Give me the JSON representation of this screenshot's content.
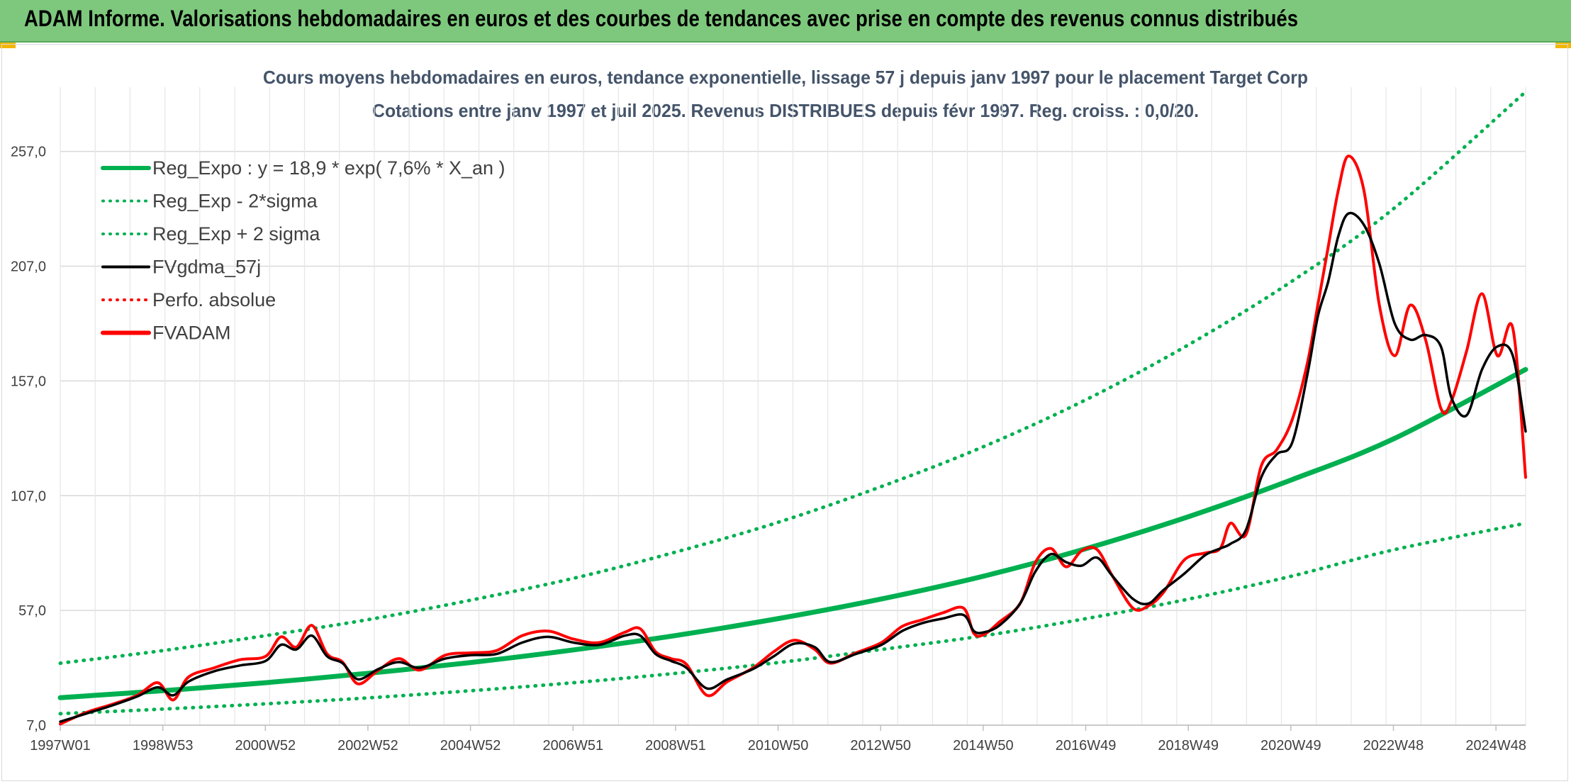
{
  "header": {
    "banner_title": "ADAM Informe. Valorisations hebdomadaires en euros et des courbes de tendances avec prise en compte des revenus connus distribués"
  },
  "colors": {
    "banner_bg": "#7dc87c",
    "reg_expo": "#00b050",
    "reg_sigma": "#00b050",
    "fvgdma": "#000000",
    "perfo": "#ff0000",
    "fvadam": "#ff0000",
    "grid": "#d9d9d9",
    "text": "#44546a"
  },
  "chart_data": {
    "type": "line",
    "title": "Cours moyens hebdomadaires en euros, tendance exponentielle, lissage 57 j depuis janv 1997 pour le placement Target Corp",
    "subtitle": "Cotations entre janv 1997 et juil 2025. Revenus DISTRIBUES depuis févr 1997. Reg. croiss. : 0,0/20.",
    "xlabel": "",
    "ylabel": "",
    "x_ticks": [
      "1997W01",
      "1998W53",
      "2000W52",
      "2002W52",
      "2004W52",
      "2006W51",
      "2008W51",
      "2010W50",
      "2012W50",
      "2014W50",
      "2016W49",
      "2018W49",
      "2020W49",
      "2022W48",
      "2024W48"
    ],
    "x_range": [
      1997.0,
      2025.55
    ],
    "y_ticks": [
      "7,0",
      "57,0",
      "107,0",
      "157,0",
      "207,0",
      "257,0"
    ],
    "ylim": [
      7,
      285
    ],
    "grid": true,
    "legend_position": "top-left",
    "legend": [
      {
        "label": "Reg_Expo : y = 18,9 * exp( 7,6% *  X_an )",
        "style": "solid-thick",
        "color": "#00b050"
      },
      {
        "label": "Reg_Exp - 2*sigma",
        "style": "dotted",
        "color": "#00b050"
      },
      {
        "label": "Reg_Exp + 2 sigma",
        "style": "dotted",
        "color": "#00b050"
      },
      {
        "label": "FVgdma_57j",
        "style": "solid",
        "color": "#000000"
      },
      {
        "label": "Perfo. absolue",
        "style": "dotted",
        "color": "#ff0000"
      },
      {
        "label": "FVADAM",
        "style": "solid-thick",
        "color": "#ff0000"
      }
    ],
    "series": [
      {
        "name": "Reg_Expo : y = 18,9 * exp( 7,6% *  X_an )",
        "style": "solid",
        "x": [
          1997.0,
          1999.0,
          2001.0,
          2003.0,
          2005.0,
          2007.0,
          2009.0,
          2011.0,
          2013.0,
          2015.0,
          2017.0,
          2019.0,
          2021.0,
          2023.0,
          2025.55
        ],
        "y": [
          19.0,
          22.0,
          25.5,
          29.6,
          34.3,
          39.8,
          46.1,
          53.5,
          62.0,
          72.0,
          84.0,
          98.0,
          114.0,
          132.0,
          162.0
        ]
      },
      {
        "name": "Reg_Exp + 2 sigma",
        "style": "dotted",
        "x": [
          1997.0,
          1999.0,
          2001.0,
          2003.0,
          2005.0,
          2007.0,
          2009.0,
          2011.0,
          2013.0,
          2015.0,
          2017.0,
          2019.0,
          2021.0,
          2023.0,
          2025.55
        ],
        "y": [
          34.0,
          39.5,
          46.0,
          53.0,
          61.5,
          71.0,
          82.5,
          95.5,
          111.0,
          128.5,
          149.0,
          173.0,
          200.5,
          232.5,
          283.0
        ]
      },
      {
        "name": "Reg_Exp - 2*sigma",
        "style": "dotted",
        "x": [
          1997.0,
          1999.0,
          2001.0,
          2003.0,
          2005.0,
          2007.0,
          2009.0,
          2011.0,
          2013.0,
          2015.0,
          2017.0,
          2019.0,
          2021.0,
          2023.0,
          2025.55
        ],
        "y": [
          12.0,
          14.0,
          16.3,
          18.9,
          22.0,
          25.5,
          29.6,
          34.3,
          40.0,
          46.0,
          53.5,
          62.0,
          72.0,
          83.5,
          95.0
        ]
      },
      {
        "name": "FVgdma_57j",
        "style": "solid",
        "x": [
          1997.0,
          1997.5,
          1998.0,
          1998.5,
          1998.9,
          1999.2,
          1999.5,
          2000.0,
          2000.5,
          2001.0,
          2001.3,
          2001.6,
          2001.9,
          2002.2,
          2002.5,
          2002.8,
          2003.2,
          2003.6,
          2004.0,
          2004.5,
          2005.0,
          2005.5,
          2006.0,
          2006.5,
          2007.0,
          2007.5,
          2008.0,
          2008.3,
          2008.6,
          2008.9,
          2009.2,
          2009.6,
          2010.0,
          2010.5,
          2010.9,
          2011.3,
          2011.7,
          2012.0,
          2012.5,
          2013.0,
          2013.4,
          2013.8,
          2014.2,
          2014.6,
          2014.8,
          2015.0,
          2015.3,
          2015.7,
          2016.0,
          2016.3,
          2016.6,
          2016.9,
          2017.2,
          2017.5,
          2017.9,
          2018.2,
          2018.5,
          2018.9,
          2019.3,
          2019.6,
          2019.8,
          2020.1,
          2020.4,
          2020.7,
          2021.0,
          2021.3,
          2021.5,
          2021.7,
          2021.9,
          2022.1,
          2022.4,
          2022.7,
          2023.0,
          2023.3,
          2023.6,
          2023.9,
          2024.1,
          2024.4,
          2024.7,
          2025.0,
          2025.3,
          2025.55
        ],
        "y": [
          8.5,
          12.0,
          15.5,
          19.5,
          23.5,
          20.0,
          26.0,
          30.5,
          33.0,
          35.0,
          42.0,
          40.0,
          46.0,
          37.0,
          34.0,
          27.0,
          31.5,
          34.5,
          32.0,
          36.0,
          37.5,
          38.0,
          43.0,
          45.5,
          43.0,
          42.0,
          46.0,
          46.0,
          38.0,
          35.0,
          32.0,
          23.0,
          27.0,
          31.5,
          37.0,
          42.5,
          41.0,
          34.5,
          38.0,
          42.0,
          48.0,
          51.5,
          53.5,
          55.0,
          48.0,
          47.5,
          50.5,
          60.0,
          74.0,
          81.5,
          78.0,
          76.5,
          80.0,
          72.0,
          62.0,
          60.0,
          66.0,
          73.0,
          81.0,
          84.0,
          86.0,
          92.0,
          115.0,
          125.0,
          130.0,
          160.0,
          185.0,
          200.0,
          220.0,
          230.0,
          225.0,
          208.0,
          182.0,
          175.0,
          177.0,
          172.0,
          150.0,
          142.0,
          162.0,
          172.0,
          168.0,
          135.0
        ]
      },
      {
        "name": "FVADAM",
        "style": "solid",
        "x": [
          1997.0,
          1997.5,
          1998.0,
          1998.5,
          1998.9,
          1999.2,
          1999.5,
          2000.0,
          2000.5,
          2001.0,
          2001.3,
          2001.6,
          2001.9,
          2002.2,
          2002.5,
          2002.8,
          2003.2,
          2003.6,
          2004.0,
          2004.5,
          2005.0,
          2005.5,
          2006.0,
          2006.5,
          2007.0,
          2007.5,
          2008.0,
          2008.3,
          2008.6,
          2008.9,
          2009.2,
          2009.6,
          2010.0,
          2010.5,
          2010.9,
          2011.3,
          2011.7,
          2012.0,
          2012.5,
          2013.0,
          2013.4,
          2013.8,
          2014.2,
          2014.6,
          2014.8,
          2015.0,
          2015.3,
          2015.7,
          2016.0,
          2016.3,
          2016.6,
          2016.9,
          2017.2,
          2017.5,
          2017.9,
          2018.2,
          2018.5,
          2018.9,
          2019.3,
          2019.6,
          2019.8,
          2020.1,
          2020.4,
          2020.7,
          2021.0,
          2021.3,
          2021.5,
          2021.7,
          2021.9,
          2022.1,
          2022.4,
          2022.7,
          2023.0,
          2023.3,
          2023.6,
          2023.9,
          2024.1,
          2024.4,
          2024.7,
          2025.0,
          2025.3,
          2025.55
        ],
        "y": [
          7.5,
          12.5,
          16.0,
          20.0,
          25.5,
          18.0,
          28.0,
          32.0,
          35.5,
          37.0,
          45.5,
          41.0,
          50.5,
          38.0,
          34.5,
          25.0,
          31.0,
          36.0,
          31.0,
          37.5,
          38.5,
          39.5,
          46.0,
          48.0,
          44.5,
          43.0,
          47.5,
          49.0,
          39.0,
          36.0,
          33.5,
          20.0,
          26.0,
          32.0,
          39.0,
          44.0,
          40.0,
          34.0,
          38.5,
          43.0,
          50.0,
          53.0,
          56.0,
          58.0,
          47.0,
          46.5,
          52.0,
          60.0,
          78.0,
          84.0,
          76.0,
          83.0,
          83.5,
          72.0,
          58.0,
          59.0,
          65.0,
          79.0,
          82.0,
          84.0,
          95.0,
          90.0,
          120.0,
          127.0,
          140.0,
          165.0,
          190.0,
          215.0,
          240.0,
          255.0,
          240.0,
          190.0,
          168.0,
          190.0,
          175.0,
          145.0,
          148.0,
          170.0,
          195.0,
          168.0,
          180.0,
          115.0
        ]
      }
    ]
  }
}
